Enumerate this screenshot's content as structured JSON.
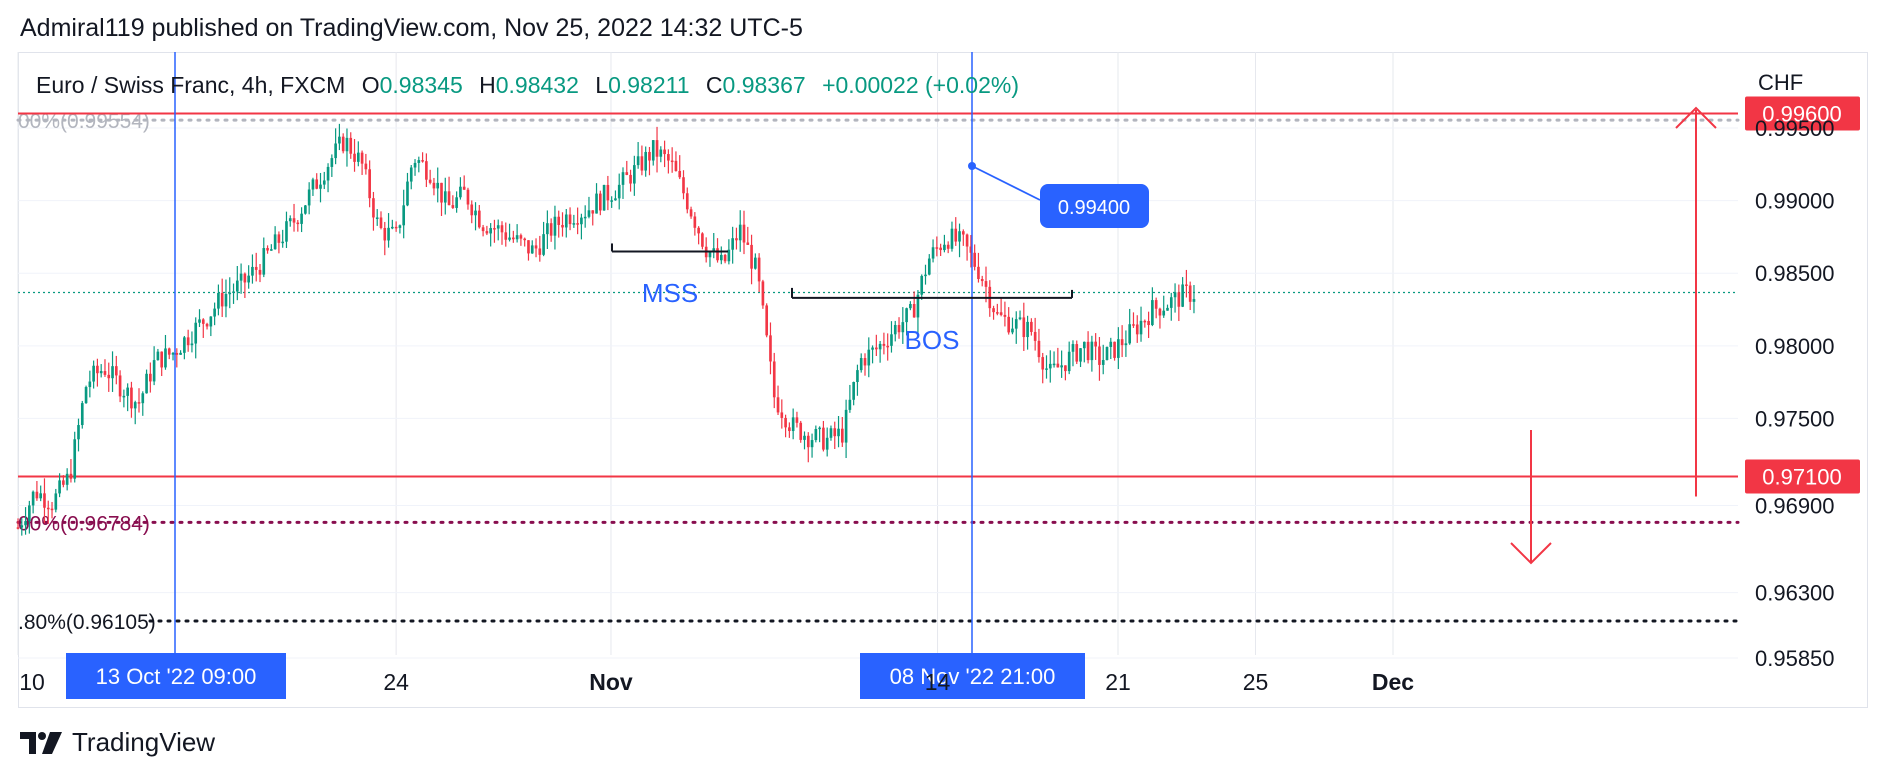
{
  "header": {
    "attribution": "Admiral119 published on TradingView.com, Nov 25, 2022 14:32 UTC-5"
  },
  "legend": {
    "symbol": "Euro / Swiss Franc, 4h, FXCM",
    "open_label": "O",
    "open": "0.98345",
    "high_label": "H",
    "high": "0.98432",
    "low_label": "L",
    "low": "0.98211",
    "close_label": "C",
    "close": "0.98367",
    "change": "+0.00022 (+0.02%)"
  },
  "currency": "CHF",
  "footer": {
    "brand": "TradingView"
  },
  "colors": {
    "up": "#089981",
    "down": "#f23645",
    "accent": "#2962ff",
    "level": "#f23645"
  },
  "chart_data": {
    "type": "candlestick",
    "title": "Euro / Swiss Franc, 4h, FXCM",
    "ylim": [
      0.9585,
      0.9985
    ],
    "y_ticks": [
      {
        "value": 0.9585,
        "label": "0.95850"
      },
      {
        "value": 0.963,
        "label": "0.96300"
      },
      {
        "value": 0.969,
        "label": "0.96900"
      },
      {
        "value": 0.975,
        "label": "0.97500"
      },
      {
        "value": 0.98,
        "label": "0.98000"
      },
      {
        "value": 0.985,
        "label": "0.98500"
      },
      {
        "value": 0.99,
        "label": "0.99000"
      },
      {
        "value": 0.995,
        "label": "0.99500"
      }
    ],
    "x_ticks": [
      {
        "label": "10",
        "bold": false
      },
      {
        "label": "24",
        "bold": false
      },
      {
        "label": "Nov",
        "bold": true
      },
      {
        "label": "14",
        "bold": false
      },
      {
        "label": "21",
        "bold": false
      },
      {
        "label": "25",
        "bold": false
      },
      {
        "label": "Dec",
        "bold": true
      }
    ],
    "crosshair_labels": [
      "13 Oct '22   09:00",
      "08 Nov '22   21:00"
    ],
    "price_levels": [
      {
        "value": 0.996,
        "label": "0.99600"
      },
      {
        "value": 0.971,
        "label": "0.97100"
      }
    ],
    "current_price": 0.98367,
    "fib_levels": [
      {
        "value": 0.99554,
        "label": "00%(0.99554)"
      },
      {
        "value": 0.96784,
        "label": "00%(0.96784)"
      },
      {
        "value": 0.96105,
        "label": ".80%(0.96105)"
      }
    ],
    "annotations": [
      {
        "text": "MSS",
        "value": 0.9865
      },
      {
        "text": "BOS",
        "value": 0.983
      },
      {
        "text": "0.99400",
        "value": 0.994
      }
    ],
    "close_path": [
      [
        10,
        0.9675
      ],
      [
        11,
        0.97
      ],
      [
        12,
        0.9692
      ],
      [
        13,
        0.971
      ],
      [
        14,
        0.9775
      ],
      [
        15,
        0.9785
      ],
      [
        16,
        0.9772
      ],
      [
        17,
        0.976
      ],
      [
        18,
        0.979
      ],
      [
        19,
        0.9795
      ],
      [
        20,
        0.9808
      ],
      [
        21,
        0.982
      ],
      [
        22,
        0.9835
      ],
      [
        23,
        0.9842
      ],
      [
        24,
        0.9855
      ],
      [
        25,
        0.987
      ],
      [
        26,
        0.9885
      ],
      [
        27,
        0.9905
      ],
      [
        28,
        0.9925
      ],
      [
        29,
        0.9942
      ],
      [
        30,
        0.9925
      ],
      [
        31,
        0.988
      ],
      [
        32,
        0.9875
      ],
      [
        33,
        0.993
      ],
      [
        34,
        0.992
      ],
      [
        35,
        0.9895
      ],
      [
        36,
        0.9905
      ],
      [
        37,
        0.9885
      ],
      [
        38,
        0.988
      ],
      [
        39,
        0.9872
      ],
      [
        40,
        0.9865
      ],
      [
        41,
        0.988
      ],
      [
        42,
        0.989
      ],
      [
        43,
        0.9893
      ],
      [
        44,
        0.9902
      ],
      [
        45,
        0.991
      ],
      [
        46,
        0.9922
      ],
      [
        47,
        0.9935
      ],
      [
        48,
        0.9925
      ],
      [
        49,
        0.9898
      ],
      [
        50,
        0.9868
      ],
      [
        51,
        0.9855
      ],
      [
        52,
        0.988
      ],
      [
        53,
        0.985
      ],
      [
        54,
        0.9765
      ],
      [
        55,
        0.9745
      ],
      [
        56,
        0.9738
      ],
      [
        57,
        0.9735
      ],
      [
        58,
        0.974
      ],
      [
        59,
        0.979
      ],
      [
        60,
        0.9798
      ],
      [
        61,
        0.9812
      ],
      [
        62,
        0.9822
      ],
      [
        63,
        0.986
      ],
      [
        64,
        0.9875
      ],
      [
        65,
        0.987
      ],
      [
        66,
        0.985
      ],
      [
        67,
        0.982
      ],
      [
        68,
        0.9815
      ],
      [
        69,
        0.981
      ],
      [
        70,
        0.978
      ],
      [
        71,
        0.979
      ],
      [
        72,
        0.98
      ],
      [
        73,
        0.979
      ],
      [
        74,
        0.98
      ],
      [
        75,
        0.9812
      ],
      [
        76,
        0.9825
      ],
      [
        77,
        0.983
      ],
      [
        78,
        0.9836
      ]
    ],
    "grid": true
  }
}
